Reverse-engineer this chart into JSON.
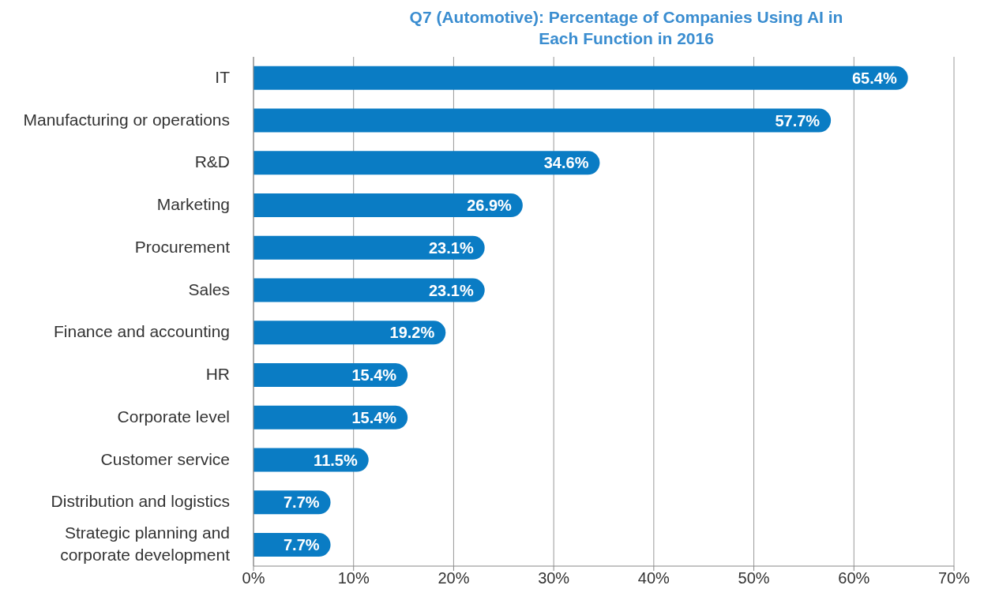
{
  "chart_data": {
    "type": "bar",
    "orientation": "horizontal",
    "title": "Q7 (Automotive): Percentage of Companies Using AI in Each Function in 2016",
    "categories": [
      "IT",
      "Manufacturing or operations",
      "R&D",
      "Marketing",
      "Procurement",
      "Sales",
      "Finance and accounting",
      "HR",
      "Corporate level",
      "Customer service",
      "Distribution and logistics",
      "Strategic planning and corporate development"
    ],
    "values": [
      65.4,
      57.7,
      34.6,
      26.9,
      23.1,
      23.1,
      19.2,
      15.4,
      15.4,
      11.5,
      7.7,
      7.7
    ],
    "value_labels": [
      "65.4%",
      "57.7%",
      "34.6%",
      "26.9%",
      "23.1%",
      "23.1%",
      "19.2%",
      "15.4%",
      "15.4%",
      "11.5%",
      "7.7%",
      "7.7%"
    ],
    "color": "#0a7cc4",
    "xlim": [
      0,
      70
    ],
    "xticks": [
      {
        "value": 0,
        "label": "0%"
      },
      {
        "value": 10,
        "label": "10%"
      },
      {
        "value": 20,
        "label": "20%"
      },
      {
        "value": 30,
        "label": "30%"
      },
      {
        "value": 40,
        "label": "40%"
      },
      {
        "value": 50,
        "label": "50%"
      },
      {
        "value": 60,
        "label": "60%"
      },
      {
        "value": 70,
        "label": "70%"
      }
    ],
    "grid": "x"
  }
}
